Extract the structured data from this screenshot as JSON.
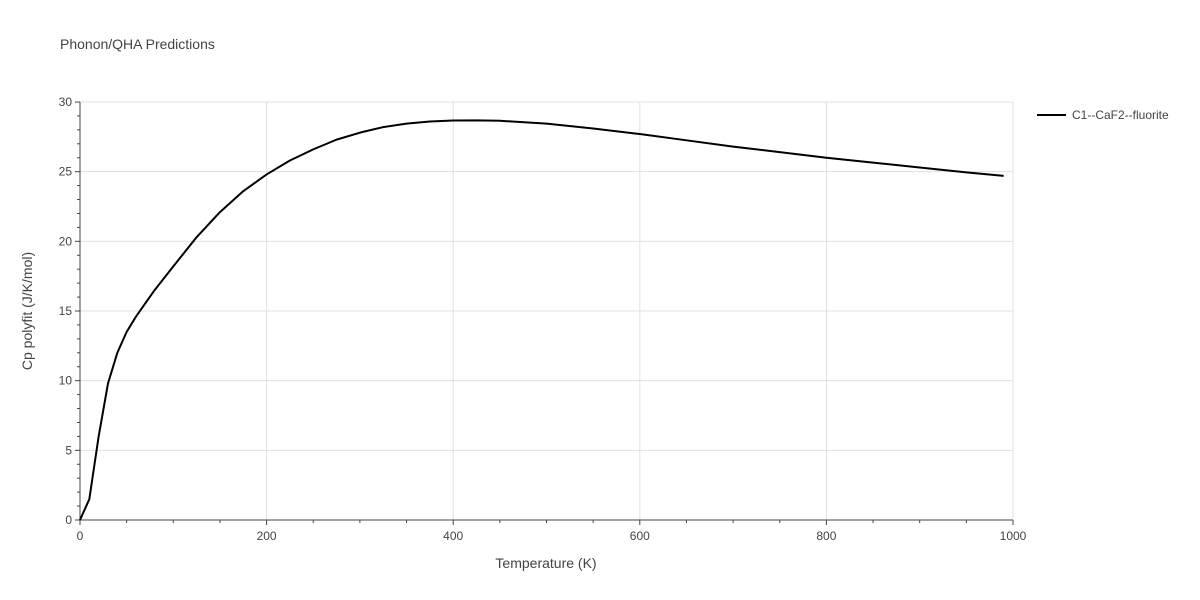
{
  "chart_data": {
    "type": "line",
    "title": "Phonon/QHA Predictions",
    "xlabel": "Temperature (K)",
    "ylabel": "Cp polyfit (J/K/mol)",
    "xlim": [
      0,
      1000
    ],
    "ylim": [
      0,
      30
    ],
    "x_ticks": [
      0,
      200,
      400,
      600,
      800,
      1000
    ],
    "y_ticks": [
      0,
      5,
      10,
      15,
      20,
      25,
      30
    ],
    "grid": true,
    "legend_position": "top-right",
    "series": [
      {
        "name": "C1--CaF2--fluorite",
        "color": "#000000",
        "x": [
          0,
          10,
          20,
          30,
          40,
          50,
          60,
          80,
          100,
          125,
          150,
          175,
          200,
          225,
          250,
          275,
          300,
          325,
          350,
          375,
          400,
          425,
          450,
          500,
          550,
          600,
          650,
          700,
          750,
          800,
          850,
          900,
          950,
          990
        ],
        "y": [
          0,
          1.5,
          6.0,
          9.8,
          12.0,
          13.5,
          14.6,
          16.5,
          18.2,
          20.3,
          22.1,
          23.6,
          24.8,
          25.8,
          26.6,
          27.3,
          27.8,
          28.2,
          28.45,
          28.6,
          28.67,
          28.68,
          28.65,
          28.45,
          28.1,
          27.7,
          27.25,
          26.8,
          26.4,
          26.0,
          25.65,
          25.3,
          24.95,
          24.7
        ]
      }
    ]
  }
}
